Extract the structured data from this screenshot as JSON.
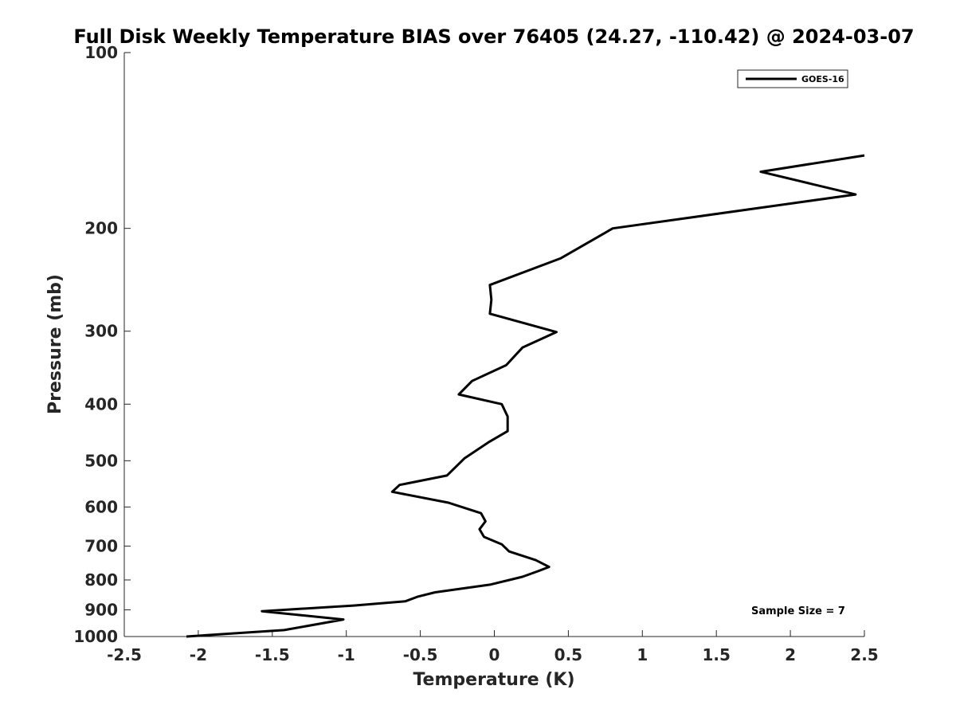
{
  "chart_data": {
    "type": "line",
    "title": "Full Disk Weekly Temperature BIAS over 76405 (24.27, -110.42) @ 2024-03-07",
    "xlabel": "Temperature (K)",
    "ylabel": "Pressure (mb)",
    "xlim": [
      -2.5,
      2.5
    ],
    "ylim": [
      100,
      1000
    ],
    "y_scale": "log",
    "y_reversed": true,
    "grid": false,
    "x_ticks": [
      -2.5,
      -2,
      -1.5,
      -1,
      -0.5,
      0,
      0.5,
      1,
      1.5,
      2,
      2.5
    ],
    "x_tick_labels": [
      "-2.5",
      "-2",
      "-1.5",
      "-1",
      "-0.5",
      "0",
      "0.5",
      "1",
      "1.5",
      "2",
      "2.5"
    ],
    "y_ticks": [
      100,
      200,
      300,
      400,
      500,
      600,
      700,
      800,
      900,
      1000
    ],
    "y_tick_labels": [
      "100",
      "200",
      "300",
      "400",
      "500",
      "600",
      "700",
      "800",
      "900",
      "1000"
    ],
    "legend_position": "top-right",
    "annotation": "Sample Size = 7",
    "series": [
      {
        "name": "GOES-16",
        "color": "#000000",
        "points": [
          [
            2.5,
            150
          ],
          [
            1.8,
            160
          ],
          [
            2.44,
            175
          ],
          [
            0.8,
            200
          ],
          [
            0.45,
            225
          ],
          [
            -0.03,
            250
          ],
          [
            -0.02,
            265
          ],
          [
            -0.03,
            280
          ],
          [
            0.42,
            301
          ],
          [
            0.19,
            320
          ],
          [
            0.08,
            343
          ],
          [
            -0.15,
            365
          ],
          [
            -0.24,
            385
          ],
          [
            0.05,
            400
          ],
          [
            0.09,
            420
          ],
          [
            0.09,
            445
          ],
          [
            -0.04,
            465
          ],
          [
            -0.2,
            495
          ],
          [
            -0.32,
            530
          ],
          [
            -0.64,
            550
          ],
          [
            -0.69,
            565
          ],
          [
            -0.31,
            590
          ],
          [
            -0.09,
            615
          ],
          [
            -0.06,
            635
          ],
          [
            -0.1,
            655
          ],
          [
            -0.07,
            675
          ],
          [
            0.05,
            695
          ],
          [
            0.1,
            715
          ],
          [
            0.28,
            740
          ],
          [
            0.37,
            760
          ],
          [
            0.3,
            772
          ],
          [
            0.19,
            790
          ],
          [
            -0.03,
            815
          ],
          [
            -0.4,
            840
          ],
          [
            -0.52,
            855
          ],
          [
            -0.6,
            870
          ],
          [
            -0.95,
            885
          ],
          [
            -1.57,
            905
          ],
          [
            -1.02,
            935
          ],
          [
            -1.42,
            975
          ],
          [
            -2.08,
            1000
          ]
        ]
      }
    ]
  }
}
